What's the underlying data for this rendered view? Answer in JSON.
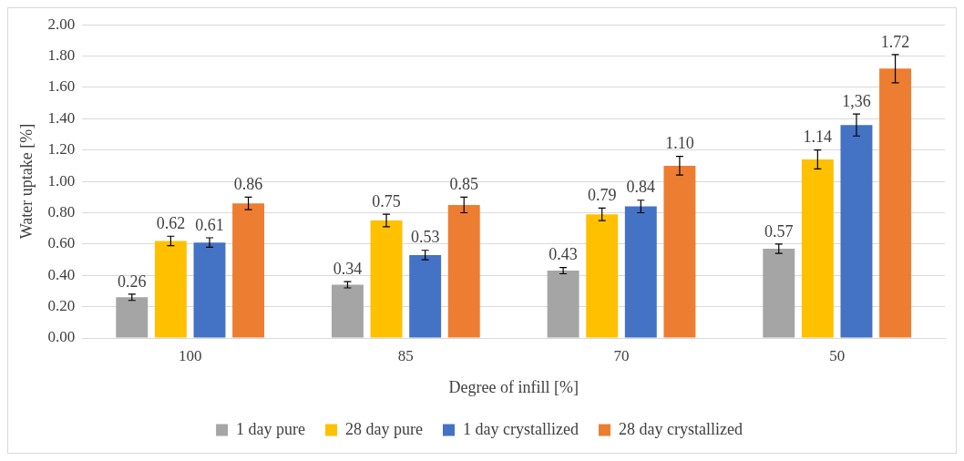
{
  "chart_data": {
    "type": "bar",
    "xlabel": "Degree of infill [%]",
    "ylabel": "Water uptake [%]",
    "categories": [
      "100",
      "85",
      "70",
      "50"
    ],
    "series": [
      {
        "name": "1 day pure",
        "color": "#a5a5a5",
        "values": [
          0.26,
          0.34,
          0.43,
          0.57
        ],
        "errors": [
          0.02,
          0.02,
          0.02,
          0.03
        ],
        "value_labels": [
          "0.26",
          "0.34",
          "0.43",
          "0.57"
        ]
      },
      {
        "name": "28 day pure",
        "color": "#ffc000",
        "values": [
          0.62,
          0.75,
          0.79,
          1.14
        ],
        "errors": [
          0.03,
          0.04,
          0.04,
          0.06
        ],
        "value_labels": [
          "0.62",
          "0.75",
          "0.79",
          "1.14"
        ]
      },
      {
        "name": "1 day crystallized",
        "color": "#4472c4",
        "values": [
          0.61,
          0.53,
          0.84,
          1.36
        ],
        "errors": [
          0.03,
          0.03,
          0.04,
          0.07
        ],
        "value_labels": [
          "0.61",
          "0.53",
          "0.84",
          "1,36"
        ]
      },
      {
        "name": "28 day crystallized",
        "color": "#ed7d31",
        "values": [
          0.86,
          0.85,
          1.1,
          1.72
        ],
        "errors": [
          0.04,
          0.05,
          0.06,
          0.09
        ],
        "value_labels": [
          "0.86",
          "0.85",
          "1.10",
          "1.72"
        ]
      }
    ],
    "ylim": [
      0,
      2
    ],
    "yticks": [
      {
        "value": 0,
        "label": "0.00"
      },
      {
        "value": 0.2,
        "label": "0.20"
      },
      {
        "value": 0.4,
        "label": "0.40"
      },
      {
        "value": 0.6,
        "label": "0.60"
      },
      {
        "value": 0.8,
        "label": "0.80"
      },
      {
        "value": 1,
        "label": "1.00"
      },
      {
        "value": 1.2,
        "label": "1.20"
      },
      {
        "value": 1.4,
        "label": "1.40"
      },
      {
        "value": 1.6,
        "label": "1.60"
      },
      {
        "value": 1.8,
        "label": "1.80"
      },
      {
        "value": 2,
        "label": "2.00"
      }
    ],
    "grid": "y",
    "legend": "bottom"
  }
}
